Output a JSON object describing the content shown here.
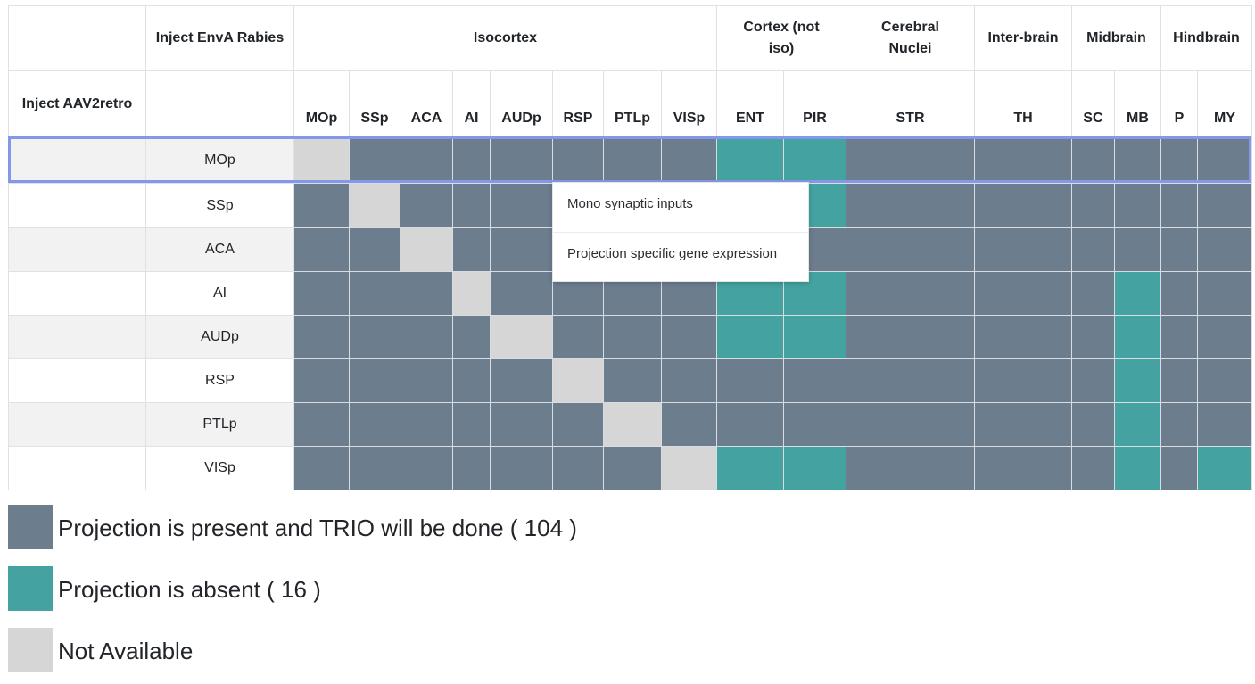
{
  "header": {
    "inject_envA_rabies": "Inject EnvA Rabies",
    "inject_aav2retro": "Inject AAV2retro",
    "regions": [
      {
        "label": "Isocortex",
        "span": 8
      },
      {
        "label": "Cortex (not iso)",
        "span": 2
      },
      {
        "label": "Cerebral Nuclei",
        "span": 1
      },
      {
        "label": "Inter-brain",
        "span": 1
      },
      {
        "label": "Midbrain",
        "span": 2
      },
      {
        "label": "Hindbrain",
        "span": 2
      }
    ],
    "columns": [
      "MOp",
      "SSp",
      "ACA",
      "AI",
      "AUDp",
      "RSP",
      "PTLp",
      "VISp",
      "ENT",
      "PIR",
      "STR",
      "TH",
      "SC",
      "MB",
      "P",
      "MY"
    ]
  },
  "rows": [
    {
      "label": "MOp",
      "cells": [
        "n",
        "p",
        "p",
        "p",
        "p",
        "p",
        "p",
        "p",
        "a",
        "a",
        "p",
        "p",
        "p",
        "p",
        "p",
        "p"
      ]
    },
    {
      "label": "SSp",
      "cells": [
        "p",
        "n",
        "p",
        "p",
        "p",
        "p",
        "p",
        "p",
        "a",
        "a",
        "p",
        "p",
        "p",
        "p",
        "p",
        "p"
      ]
    },
    {
      "label": "ACA",
      "cells": [
        "p",
        "p",
        "n",
        "p",
        "p",
        "p",
        "p",
        "p",
        "p",
        "p",
        "p",
        "p",
        "p",
        "p",
        "p",
        "p"
      ]
    },
    {
      "label": "AI",
      "cells": [
        "p",
        "p",
        "p",
        "n",
        "p",
        "p",
        "p",
        "p",
        "a",
        "a",
        "p",
        "p",
        "p",
        "a",
        "p",
        "p"
      ]
    },
    {
      "label": "AUDp",
      "cells": [
        "p",
        "p",
        "p",
        "p",
        "n",
        "p",
        "p",
        "p",
        "a",
        "a",
        "p",
        "p",
        "p",
        "a",
        "p",
        "p"
      ]
    },
    {
      "label": "RSP",
      "cells": [
        "p",
        "p",
        "p",
        "p",
        "p",
        "n",
        "p",
        "p",
        "p",
        "p",
        "p",
        "p",
        "p",
        "a",
        "p",
        "p"
      ]
    },
    {
      "label": "PTLp",
      "cells": [
        "p",
        "p",
        "p",
        "p",
        "p",
        "p",
        "n",
        "p",
        "p",
        "p",
        "p",
        "p",
        "p",
        "a",
        "p",
        "p"
      ]
    },
    {
      "label": "VISp",
      "cells": [
        "p",
        "p",
        "p",
        "p",
        "p",
        "p",
        "p",
        "n",
        "a",
        "a",
        "p",
        "p",
        "p",
        "a",
        "p",
        "a"
      ]
    }
  ],
  "selected_row": "MOp",
  "context_menu": {
    "items": [
      "Mono synaptic inputs",
      "Projection specific gene expression"
    ]
  },
  "legend": {
    "present": "Projection is present and TRIO will be done ( 104 )",
    "absent": "Projection is absent ( 16 )",
    "not_available": "Not Available"
  },
  "colors": {
    "present": "#6c7d8e",
    "absent": "#44a3a0",
    "not_available": "#d6d6d6",
    "selection_border": "#8597e8"
  }
}
